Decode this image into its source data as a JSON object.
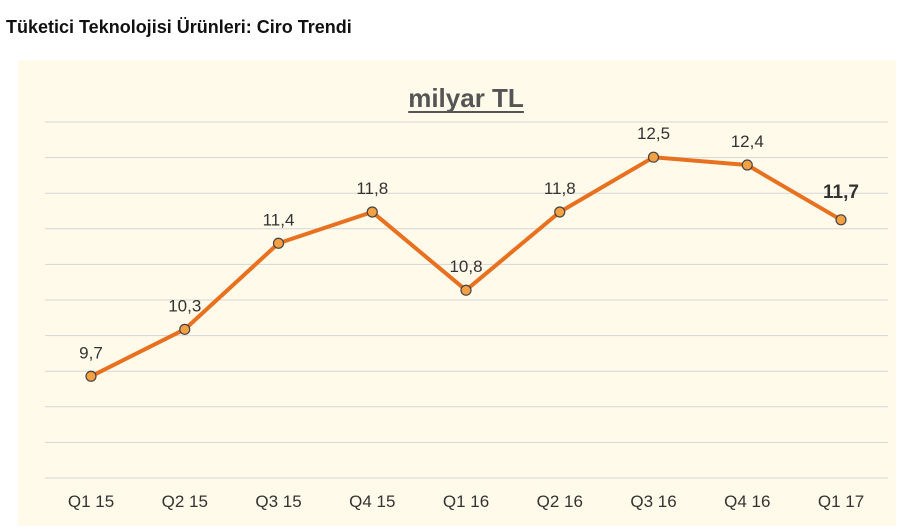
{
  "page": {
    "title": "Tüketici Teknolojisi Ürünleri: Ciro Trendi"
  },
  "chart_data": {
    "type": "line",
    "title": "milyar TL",
    "categories": [
      "Q1 15",
      "Q2 15",
      "Q3 15",
      "Q4 15",
      "Q1 16",
      "Q2 16",
      "Q3 16",
      "Q4 16",
      "Q1 17"
    ],
    "series": [
      {
        "values": [
          9.7,
          10.3,
          11.4,
          11.8,
          10.8,
          11.8,
          12.5,
          12.4,
          11.7
        ],
        "labels": [
          "9,7",
          "10,3",
          "11,4",
          "11,8",
          "10,8",
          "11,8",
          "12,5",
          "12,4",
          "11,7"
        ],
        "color": "#e8711f",
        "marker_fill": "#f4a043",
        "highlight_last": true
      }
    ],
    "ylim": [
      8.4,
      12.95
    ],
    "grid": true,
    "legend": "none",
    "background": "#fffaea"
  }
}
